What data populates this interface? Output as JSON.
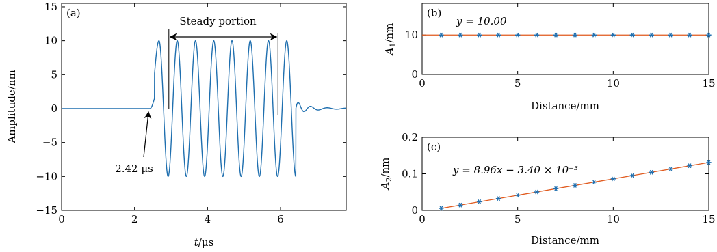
{
  "chart_data": [
    {
      "panel": "(a)",
      "type": "line",
      "xlabel_italic": "t",
      "xlabel_unit": "/μs",
      "ylabel": "Amplitude/nm",
      "xlim": [
        0,
        7.8
      ],
      "ylim": [
        -15,
        15.5
      ],
      "xticks": [
        0,
        2,
        4,
        6
      ],
      "yticks": [
        -15,
        -10,
        -5,
        0,
        5,
        10,
        15
      ],
      "ytick_labels": [
        "−15",
        "−10",
        "−5",
        "0",
        "5",
        "10",
        "15"
      ],
      "signal": {
        "onset_us": 2.42,
        "end_us": 6.42,
        "amplitude_nm": 10,
        "frequency_MHz": 2,
        "tail_oscillation_until_us": 7.8
      },
      "annotations": {
        "steady_label": "Steady portion",
        "steady_start_us": 2.94,
        "steady_end_us": 5.93,
        "onset_label": "2.42 μs"
      },
      "line_color": "#1f6faf"
    },
    {
      "panel": "(b)",
      "type": "scatter",
      "xlabel": "Distance/mm",
      "ylabel_base": "A",
      "ylabel_sub": "1",
      "ylabel_unit": "/nm",
      "xlim": [
        0,
        15
      ],
      "ylim": [
        0,
        18
      ],
      "xticks": [
        0,
        5,
        10,
        15
      ],
      "yticks": [
        0,
        10
      ],
      "ytick_labels": [
        "0",
        "10"
      ],
      "x": [
        1,
        2,
        3,
        4,
        5,
        6,
        7,
        8,
        9,
        10,
        11,
        12,
        13,
        14,
        15
      ],
      "y": [
        10,
        10,
        10,
        10,
        10,
        10,
        10,
        10,
        10,
        10,
        10,
        10,
        10,
        10,
        10
      ],
      "fit": {
        "slope": 0,
        "intercept": 10.0,
        "label": "y = 10.00"
      },
      "marker_color": "#1f6faf",
      "fit_color": "#e05a1e"
    },
    {
      "panel": "(c)",
      "type": "scatter",
      "xlabel": "Distance/mm",
      "ylabel_base": "A",
      "ylabel_sub": "2",
      "ylabel_unit": "/nm",
      "xlim": [
        0,
        15
      ],
      "ylim": [
        0,
        0.2
      ],
      "xticks": [
        0,
        5,
        10,
        15
      ],
      "yticks": [
        0,
        0.1,
        0.2
      ],
      "ytick_labels": [
        "0",
        "0.1",
        "0.2"
      ],
      "x": [
        1,
        2,
        3,
        4,
        5,
        6,
        7,
        8,
        9,
        10,
        11,
        12,
        13,
        14,
        15
      ],
      "y": [
        0.0056,
        0.0145,
        0.0235,
        0.0324,
        0.0414,
        0.0504,
        0.0593,
        0.0683,
        0.0772,
        0.0862,
        0.0952,
        0.1041,
        0.1131,
        0.122,
        0.131
      ],
      "fit": {
        "slope": 0.00896,
        "intercept": -0.0034,
        "label": "y = 8.96x − 3.40 × 10⁻³"
      },
      "marker_color": "#1f6faf",
      "fit_color": "#e05a1e"
    }
  ]
}
